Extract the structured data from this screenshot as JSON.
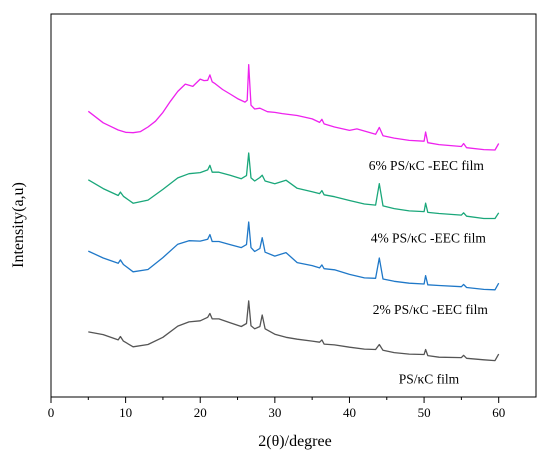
{
  "chart_data": {
    "type": "line",
    "xlabel": "2(θ)/degree",
    "ylabel": "Intensity(a,u)",
    "xlim": [
      0,
      65
    ],
    "ylim": [
      0,
      100
    ],
    "xticks": [
      0,
      10,
      20,
      30,
      40,
      50,
      60
    ],
    "grid": false,
    "legend": "inline labels right of each curve",
    "series": [
      {
        "name": "PS/κC film",
        "color": "#555555",
        "x": [
          5,
          7,
          9,
          9.3,
          9.7,
          11,
          13,
          15,
          17,
          18.5,
          20,
          21,
          21.3,
          21.6,
          22.5,
          24,
          25.5,
          26.2,
          26.5,
          26.8,
          27.3,
          28,
          28.3,
          28.7,
          30,
          31.5,
          33,
          35,
          36,
          36.3,
          36.6,
          38,
          40,
          42,
          43.5,
          44,
          44.5,
          46,
          48,
          50,
          50.2,
          50.5,
          52,
          55,
          55.3,
          55.7,
          58,
          59.5,
          60
        ],
        "y": [
          17.0,
          16.3,
          14.9,
          15.8,
          14.6,
          13.1,
          13.7,
          15.6,
          18.5,
          19.6,
          19.9,
          20.8,
          21.8,
          20.4,
          20.4,
          19.4,
          18.4,
          19.2,
          25.1,
          18.6,
          17.8,
          18.4,
          21.4,
          17.8,
          16.4,
          15.6,
          15.1,
          14.6,
          14.3,
          14.9,
          13.8,
          13.6,
          13.0,
          12.5,
          12.4,
          13.7,
          12.2,
          11.6,
          11.2,
          11.1,
          12.4,
          10.8,
          10.4,
          10.3,
          10.9,
          10.1,
          9.7,
          9.5,
          11.2
        ]
      },
      {
        "name": "2% PS/κC -EEC film",
        "color": "#1f78c8",
        "x": [
          5,
          7,
          9,
          9.3,
          9.7,
          11,
          13,
          15,
          17,
          18.5,
          20,
          21,
          21.3,
          21.6,
          22.5,
          24,
          25.5,
          26.2,
          26.5,
          26.8,
          27.3,
          28,
          28.3,
          28.7,
          30,
          31.5,
          33,
          35,
          36,
          36.3,
          36.6,
          38,
          40,
          42,
          43.5,
          44,
          44.5,
          46,
          48,
          50,
          50.2,
          50.5,
          52,
          55,
          55.3,
          55.7,
          58,
          59.5,
          60
        ],
        "y": [
          38.1,
          36.3,
          34.9,
          35.8,
          34.6,
          32.7,
          33.3,
          36.4,
          39.9,
          40.8,
          40.7,
          41.2,
          42.4,
          40.6,
          40.6,
          39.8,
          39.0,
          39.8,
          45.7,
          39.0,
          38.0,
          38.8,
          41.6,
          37.8,
          36.8,
          37.7,
          35.1,
          34.3,
          33.7,
          34.5,
          33.5,
          33.2,
          32.0,
          31.1,
          31.0,
          36.3,
          30.8,
          30.2,
          29.7,
          29.5,
          31.7,
          29.3,
          29.1,
          28.8,
          29.4,
          28.6,
          28.1,
          28.0,
          29.7
        ]
      },
      {
        "name": "4% PS/κC -EEC film",
        "color": "#1aa77a",
        "x": [
          5,
          7,
          9,
          9.3,
          9.7,
          11,
          13,
          15,
          17,
          18.5,
          20,
          21,
          21.3,
          21.6,
          22.5,
          24,
          25.5,
          26.2,
          26.5,
          26.8,
          27.3,
          28,
          28.3,
          28.7,
          30,
          31.5,
          33,
          35,
          36,
          36.3,
          36.6,
          38,
          40,
          42,
          43.5,
          44,
          44.5,
          46,
          48,
          50,
          50.2,
          50.5,
          52,
          55,
          55.3,
          55.7,
          58,
          59.5,
          60
        ],
        "y": [
          56.7,
          54.4,
          52.6,
          53.5,
          52.4,
          50.6,
          51.4,
          54.2,
          57.2,
          58.3,
          58.6,
          59.3,
          60.5,
          58.7,
          58.7,
          57.9,
          57.0,
          57.8,
          63.7,
          57.2,
          56.4,
          57.3,
          57.9,
          56.4,
          55.7,
          56.6,
          54.5,
          53.6,
          53.1,
          53.9,
          52.8,
          52.3,
          51.3,
          50.4,
          50.1,
          55.7,
          49.9,
          49.2,
          48.6,
          48.4,
          50.6,
          48.2,
          47.9,
          47.5,
          48.1,
          47.2,
          46.6,
          46.6,
          48.1
        ]
      },
      {
        "name": "6% PS/κC -EEC film",
        "color": "#ee22ee",
        "x": [
          5,
          7,
          9,
          10,
          11,
          12,
          13,
          14,
          15,
          16,
          17,
          18,
          19,
          20,
          20.5,
          21,
          21.3,
          21.6,
          22,
          23,
          24,
          25,
          26,
          26.3,
          26.5,
          26.8,
          27.3,
          28,
          29,
          30,
          31,
          33,
          35,
          36,
          36.3,
          36.6,
          38,
          40,
          41,
          43.5,
          44,
          44.5,
          46,
          48,
          50,
          50.2,
          50.5,
          52,
          55,
          55.3,
          55.7,
          58,
          59.5,
          60
        ],
        "y": [
          74.6,
          71.6,
          69.7,
          69.1,
          69.0,
          69.3,
          70.5,
          72.0,
          74.3,
          77.2,
          79.8,
          81.7,
          81.1,
          83.0,
          82.6,
          82.7,
          84.1,
          82.3,
          81.8,
          80.3,
          79.1,
          77.9,
          77.0,
          77.5,
          86.8,
          76.2,
          75.2,
          75.4,
          74.5,
          74.3,
          74.0,
          73.5,
          72.6,
          71.7,
          72.5,
          71.3,
          70.5,
          69.6,
          70.0,
          68.6,
          70.4,
          68.2,
          67.6,
          67.0,
          66.8,
          69.2,
          66.4,
          65.9,
          65.4,
          66.2,
          65.1,
          64.6,
          64.5,
          66.2
        ]
      }
    ]
  }
}
